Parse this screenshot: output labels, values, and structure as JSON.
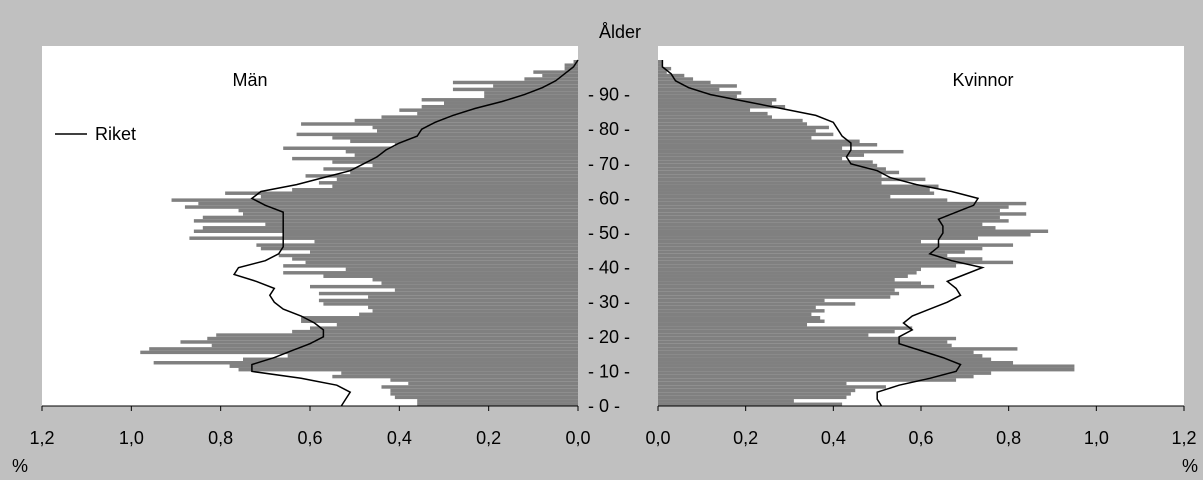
{
  "chart_data": {
    "type": "bar",
    "orientation": "horizontal",
    "layout": "population pyramid, two mirrored panels",
    "center_axis_label": "Ålder",
    "age_ticks": [
      "0",
      "10",
      "20",
      "30",
      "40",
      "50",
      "60",
      "70",
      "80",
      "90"
    ],
    "age_range": [
      0,
      100
    ],
    "x_tick_labels": [
      "0,0",
      "0,2",
      "0,4",
      "0,6",
      "0,8",
      "1,0",
      "1,2"
    ],
    "xlim": [
      0,
      1.2
    ],
    "x_unit_label": "%",
    "grid": false,
    "legend": {
      "placement": "left panel, upper-left",
      "entries": [
        "Riket"
      ]
    },
    "colors": {
      "bars": "#808080",
      "line": "#000000",
      "plot_background": "#ffffff",
      "page_background": "#c0c0c0"
    },
    "panels": [
      {
        "title": "Män",
        "bar_series": {
          "ages": [
            0,
            1,
            2,
            3,
            4,
            5,
            6,
            7,
            8,
            9,
            10,
            11,
            12,
            13,
            14,
            15,
            16,
            17,
            18,
            19,
            20,
            21,
            22,
            23,
            24,
            25,
            26,
            27,
            28,
            29,
            30,
            31,
            32,
            33,
            34,
            35,
            36,
            37,
            38,
            39,
            40,
            41,
            42,
            43,
            44,
            45,
            46,
            47,
            48,
            49,
            50,
            51,
            52,
            53,
            54,
            55,
            56,
            57,
            58,
            59,
            60,
            61,
            62,
            63,
            64,
            65,
            66,
            67,
            68,
            69,
            70,
            71,
            72,
            73,
            74,
            75,
            76,
            77,
            78,
            79,
            80,
            81,
            82,
            83,
            84,
            85,
            86,
            87,
            88,
            89,
            90,
            91,
            92,
            93,
            94,
            95,
            96,
            97,
            98,
            99
          ],
          "values": [
            0.36,
            0.36,
            0.41,
            0.42,
            0.42,
            0.44,
            0.38,
            0.42,
            0.55,
            0.53,
            0.76,
            0.78,
            0.95,
            0.75,
            0.65,
            0.98,
            0.96,
            0.82,
            0.89,
            0.83,
            0.81,
            0.64,
            0.6,
            0.54,
            0.62,
            0.62,
            0.49,
            0.46,
            0.47,
            0.57,
            0.58,
            0.47,
            0.58,
            0.41,
            0.6,
            0.44,
            0.46,
            0.57,
            0.66,
            0.52,
            0.66,
            0.61,
            0.64,
            0.67,
            0.6,
            0.71,
            0.72,
            0.59,
            0.87,
            0.66,
            0.86,
            0.84,
            0.7,
            0.86,
            0.84,
            0.75,
            0.76,
            0.88,
            0.85,
            0.91,
            0.71,
            0.79,
            0.64,
            0.55,
            0.58,
            0.54,
            0.61,
            0.51,
            0.57,
            0.46,
            0.55,
            0.64,
            0.5,
            0.52,
            0.66,
            0.41,
            0.51,
            0.55,
            0.63,
            0.45,
            0.46,
            0.62,
            0.5,
            0.44,
            0.36,
            0.4,
            0.35,
            0.3,
            0.35,
            0.21,
            0.21,
            0.28,
            0.19,
            0.28,
            0.12,
            0.08,
            0.1,
            0.03,
            0.03,
            0.01
          ]
        },
        "line_series": {
          "name": "Riket",
          "ages": [
            0,
            2,
            4,
            6,
            8,
            10,
            12,
            14,
            16,
            18,
            20,
            22,
            24,
            26,
            28,
            30,
            32,
            34,
            36,
            38,
            40,
            42,
            44,
            46,
            48,
            50,
            52,
            54,
            56,
            58,
            60,
            62,
            64,
            66,
            68,
            70,
            72,
            74,
            76,
            78,
            80,
            82,
            84,
            86,
            88,
            90,
            92,
            94,
            96,
            98,
            100
          ],
          "values": [
            0.53,
            0.52,
            0.51,
            0.54,
            0.62,
            0.73,
            0.73,
            0.68,
            0.64,
            0.6,
            0.57,
            0.57,
            0.59,
            0.62,
            0.66,
            0.68,
            0.69,
            0.68,
            0.72,
            0.77,
            0.76,
            0.7,
            0.67,
            0.66,
            0.66,
            0.66,
            0.66,
            0.66,
            0.66,
            0.7,
            0.73,
            0.71,
            0.63,
            0.57,
            0.51,
            0.48,
            0.45,
            0.43,
            0.4,
            0.36,
            0.35,
            0.32,
            0.28,
            0.23,
            0.17,
            0.12,
            0.08,
            0.05,
            0.03,
            0.01,
            0.0
          ]
        }
      },
      {
        "title": "Kvinnor",
        "bar_series": {
          "ages": [
            0,
            1,
            2,
            3,
            4,
            5,
            6,
            7,
            8,
            9,
            10,
            11,
            12,
            13,
            14,
            15,
            16,
            17,
            18,
            19,
            20,
            21,
            22,
            23,
            24,
            25,
            26,
            27,
            28,
            29,
            30,
            31,
            32,
            33,
            34,
            35,
            36,
            37,
            38,
            39,
            40,
            41,
            42,
            43,
            44,
            45,
            46,
            47,
            48,
            49,
            50,
            51,
            52,
            53,
            54,
            55,
            56,
            57,
            58,
            59,
            60,
            61,
            62,
            63,
            64,
            65,
            66,
            67,
            68,
            69,
            70,
            71,
            72,
            73,
            74,
            75,
            76,
            77,
            78,
            79,
            80,
            81,
            82,
            83,
            84,
            85,
            86,
            87,
            88,
            89,
            90,
            91,
            92,
            93,
            94,
            95,
            96,
            97,
            98,
            99
          ],
          "values": [
            0.42,
            0.31,
            0.43,
            0.44,
            0.45,
            0.52,
            0.43,
            0.68,
            0.72,
            0.76,
            0.95,
            0.95,
            0.81,
            0.76,
            0.74,
            0.72,
            0.82,
            0.67,
            0.66,
            0.68,
            0.48,
            0.54,
            0.58,
            0.34,
            0.38,
            0.37,
            0.35,
            0.38,
            0.36,
            0.45,
            0.38,
            0.53,
            0.55,
            0.54,
            0.63,
            0.6,
            0.54,
            0.57,
            0.59,
            0.6,
            0.68,
            0.81,
            0.74,
            0.66,
            0.7,
            0.74,
            0.81,
            0.6,
            0.73,
            0.85,
            0.89,
            0.77,
            0.74,
            0.8,
            0.78,
            0.84,
            0.78,
            0.8,
            0.84,
            0.66,
            0.53,
            0.63,
            0.62,
            0.64,
            0.51,
            0.61,
            0.51,
            0.55,
            0.52,
            0.5,
            0.49,
            0.42,
            0.47,
            0.56,
            0.42,
            0.5,
            0.46,
            0.35,
            0.4,
            0.36,
            0.39,
            0.34,
            0.33,
            0.26,
            0.25,
            0.21,
            0.29,
            0.26,
            0.27,
            0.18,
            0.19,
            0.14,
            0.18,
            0.12,
            0.08,
            0.06,
            0.02,
            0.03,
            0.01,
            0.01
          ]
        },
        "line_series": {
          "name": "Riket",
          "ages": [
            0,
            2,
            4,
            6,
            8,
            10,
            12,
            14,
            16,
            18,
            20,
            22,
            24,
            26,
            28,
            30,
            32,
            34,
            36,
            38,
            40,
            42,
            44,
            46,
            48,
            50,
            52,
            54,
            56,
            58,
            60,
            62,
            64,
            66,
            68,
            70,
            72,
            74,
            76,
            78,
            80,
            82,
            84,
            86,
            88,
            90,
            92,
            94,
            96,
            98,
            100
          ],
          "values": [
            0.51,
            0.5,
            0.5,
            0.55,
            0.62,
            0.68,
            0.69,
            0.65,
            0.6,
            0.55,
            0.55,
            0.58,
            0.56,
            0.58,
            0.62,
            0.66,
            0.69,
            0.68,
            0.66,
            0.7,
            0.74,
            0.67,
            0.62,
            0.64,
            0.64,
            0.65,
            0.65,
            0.64,
            0.68,
            0.72,
            0.73,
            0.67,
            0.59,
            0.53,
            0.5,
            0.44,
            0.43,
            0.44,
            0.44,
            0.42,
            0.41,
            0.4,
            0.36,
            0.28,
            0.2,
            0.12,
            0.07,
            0.04,
            0.03,
            0.01,
            0.01
          ]
        }
      }
    ]
  }
}
